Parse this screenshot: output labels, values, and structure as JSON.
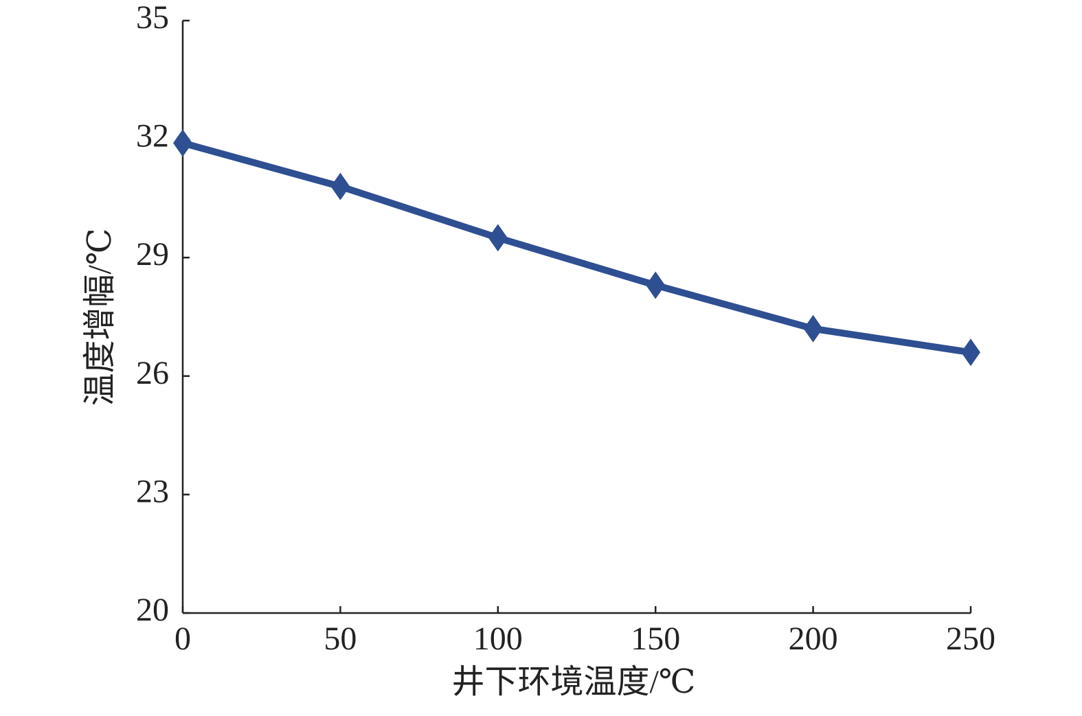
{
  "chart_data": {
    "type": "line",
    "x_label": "井下环境温度/℃",
    "y_label": "温度增幅/℃",
    "x": [
      0,
      50,
      100,
      150,
      200,
      250
    ],
    "series": [
      {
        "color": "#2e4f92",
        "values": [
          31.9,
          30.8,
          29.5,
          28.3,
          27.2,
          26.6
        ]
      }
    ],
    "xlim": [
      0,
      250
    ],
    "xticks": [
      0,
      50,
      100,
      150,
      200,
      250
    ],
    "ylim": [
      20,
      35
    ],
    "yticks": [
      20,
      23,
      26,
      29,
      32,
      35
    ],
    "marker": "diamond",
    "grid": false
  }
}
